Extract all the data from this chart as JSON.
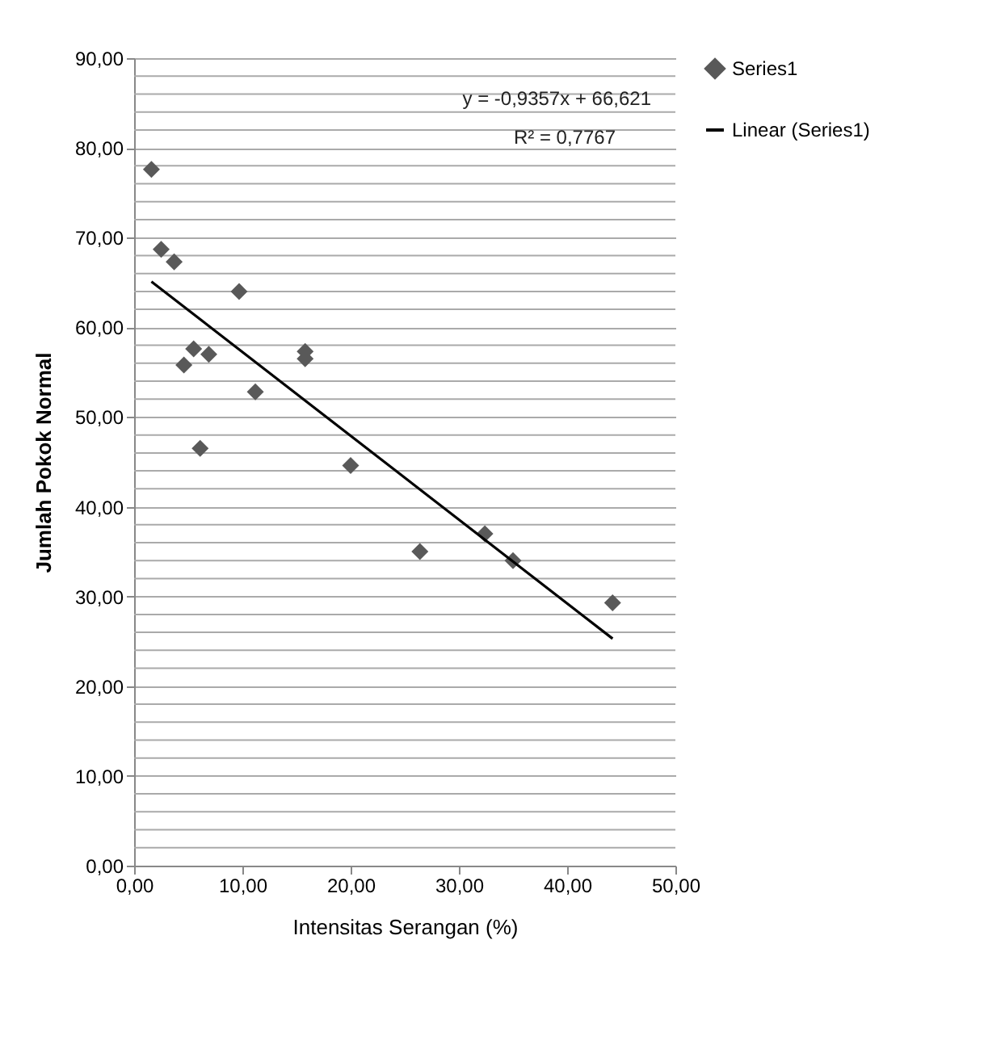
{
  "chart_data": {
    "type": "scatter",
    "xlabel": "Intensitas Serangan (%)",
    "ylabel": "Jumlah Pokok Normal",
    "x": [
      1.6,
      2.5,
      3.7,
      4.6,
      5.5,
      6.9,
      6.1,
      9.7,
      11.2,
      15.8,
      15.8,
      20.0,
      26.4,
      32.4,
      35.0,
      44.2
    ],
    "series": [
      {
        "name": "Series1",
        "color": "#595959",
        "marker": "diamond",
        "values": [
          77.6,
          68.7,
          67.3,
          55.8,
          57.6,
          57.0,
          46.5,
          64.0,
          52.8,
          57.3,
          56.5,
          44.6,
          35.0,
          37.0,
          34.0,
          29.3
        ]
      },
      {
        "name": "Linear (Series1)",
        "type": "line",
        "color": "#000000",
        "x": [
          1.6,
          44.2
        ],
        "values": [
          65.1,
          25.3
        ]
      }
    ],
    "xlim": [
      0,
      50
    ],
    "xticks": [
      {
        "value": 0,
        "label": "0,00"
      },
      {
        "value": 10,
        "label": "10,00"
      },
      {
        "value": 20,
        "label": "20,00"
      },
      {
        "value": 30,
        "label": "30,00"
      },
      {
        "value": 40,
        "label": "40,00"
      },
      {
        "value": 50,
        "label": "50,00"
      }
    ],
    "ylim": [
      0,
      90
    ],
    "yticks": [
      {
        "value": 0,
        "label": "0,00"
      },
      {
        "value": 2,
        "label": null
      },
      {
        "value": 4,
        "label": null
      },
      {
        "value": 6,
        "label": null
      },
      {
        "value": 8,
        "label": null
      },
      {
        "value": 10,
        "label": "10,00"
      },
      {
        "value": 12,
        "label": null
      },
      {
        "value": 14,
        "label": null
      },
      {
        "value": 16,
        "label": null
      },
      {
        "value": 18,
        "label": null
      },
      {
        "value": 20,
        "label": "20,00"
      },
      {
        "value": 22,
        "label": null
      },
      {
        "value": 24,
        "label": null
      },
      {
        "value": 26,
        "label": null
      },
      {
        "value": 28,
        "label": null
      },
      {
        "value": 30,
        "label": "30,00"
      },
      {
        "value": 32,
        "label": null
      },
      {
        "value": 34,
        "label": null
      },
      {
        "value": 36,
        "label": null
      },
      {
        "value": 38,
        "label": null
      },
      {
        "value": 40,
        "label": "40,00"
      },
      {
        "value": 42,
        "label": null
      },
      {
        "value": 44,
        "label": null
      },
      {
        "value": 46,
        "label": null
      },
      {
        "value": 48,
        "label": null
      },
      {
        "value": 50,
        "label": "50,00"
      },
      {
        "value": 52,
        "label": null
      },
      {
        "value": 54,
        "label": null
      },
      {
        "value": 56,
        "label": null
      },
      {
        "value": 58,
        "label": null
      },
      {
        "value": 60,
        "label": "60,00"
      },
      {
        "value": 62,
        "label": null
      },
      {
        "value": 64,
        "label": null
      },
      {
        "value": 66,
        "label": null
      },
      {
        "value": 68,
        "label": null
      },
      {
        "value": 70,
        "label": "70,00"
      },
      {
        "value": 72,
        "label": null
      },
      {
        "value": 74,
        "label": null
      },
      {
        "value": 76,
        "label": null
      },
      {
        "value": 78,
        "label": null
      },
      {
        "value": 80,
        "label": "80,00"
      },
      {
        "value": 82,
        "label": null
      },
      {
        "value": 84,
        "label": null
      },
      {
        "value": 86,
        "label": null
      },
      {
        "value": 88,
        "label": null
      },
      {
        "value": 90,
        "label": "90,00"
      }
    ],
    "annotations": [
      "y = -0,9357x + 66,621",
      "R² = 0,7767"
    ],
    "grid": "y",
    "legend": "right"
  }
}
